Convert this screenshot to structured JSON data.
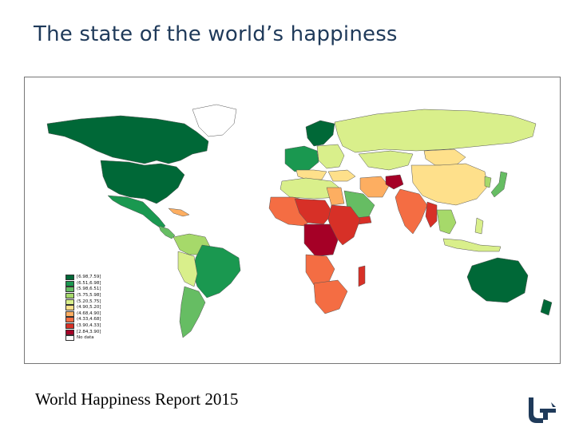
{
  "slide": {
    "title": "The state of the world’s happiness",
    "footer": "World Happiness Report 2015"
  },
  "map": {
    "legend": {
      "items": [
        {
          "label": "[6.98,7.59]",
          "color": "#006837"
        },
        {
          "label": "(6.51,6.98]",
          "color": "#1a9850"
        },
        {
          "label": "(5.98,6.51]",
          "color": "#66bd63"
        },
        {
          "label": "(5.75,5.98]",
          "color": "#a6d96a"
        },
        {
          "label": "(5.20,5.75]",
          "color": "#d9ef8b"
        },
        {
          "label": "(4.90,5.20]",
          "color": "#fee08b"
        },
        {
          "label": "(4.68,4.90]",
          "color": "#fdae61"
        },
        {
          "label": "(4.33,4.68]",
          "color": "#f46d43"
        },
        {
          "label": "(3.90,4.33]",
          "color": "#d73027"
        },
        {
          "label": "[2.84,3.90]",
          "color": "#a50026"
        },
        {
          "label": "No data",
          "color": "#ffffff"
        }
      ]
    }
  },
  "logo": {
    "icon": "university-logo-icon",
    "color": "#1f3a5a"
  }
}
